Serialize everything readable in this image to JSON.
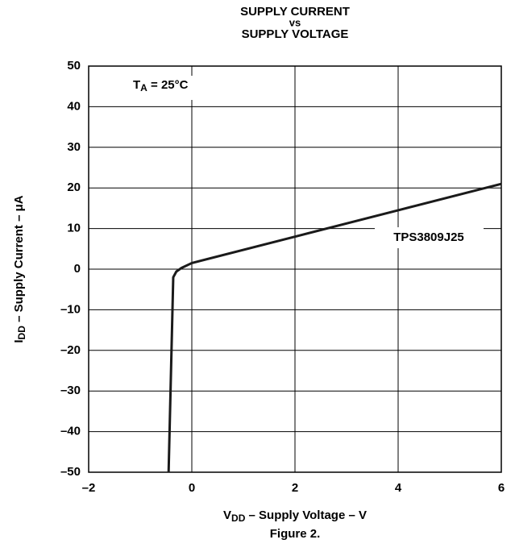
{
  "chart_data": {
    "type": "line",
    "title": [
      "SUPPLY CURRENT",
      "vs",
      "SUPPLY VOLTAGE"
    ],
    "x_label": [
      "V",
      "DD",
      " – Supply Voltage – V"
    ],
    "y_label": [
      "I",
      "DD",
      " – Supply Current – μA"
    ],
    "annotation": [
      "T",
      "A",
      " = 25°C"
    ],
    "caption": "Figure 2.",
    "series": [
      {
        "name": "TPS3809J25",
        "color": "#1a1a1a",
        "x": [
          -0.45,
          -0.36,
          -0.3,
          -0.2,
          0,
          2,
          4,
          6
        ],
        "values": [
          -50,
          -2,
          -0.6,
          0.3,
          1.5,
          8,
          14.5,
          21
        ]
      }
    ],
    "xlim": [
      -2,
      6
    ],
    "xticks": [
      {
        "value": -2,
        "label": "–2"
      },
      0,
      2,
      4,
      6
    ],
    "ylim": [
      -50,
      50
    ],
    "yticks": [
      {
        "value": -50,
        "label": "–50"
      },
      {
        "value": -40,
        "label": "–40"
      },
      {
        "value": -30,
        "label": "–30"
      },
      {
        "value": -20,
        "label": "–20"
      },
      {
        "value": -10,
        "label": "–10"
      },
      0,
      10,
      20,
      30,
      40,
      50
    ],
    "grid": true
  }
}
